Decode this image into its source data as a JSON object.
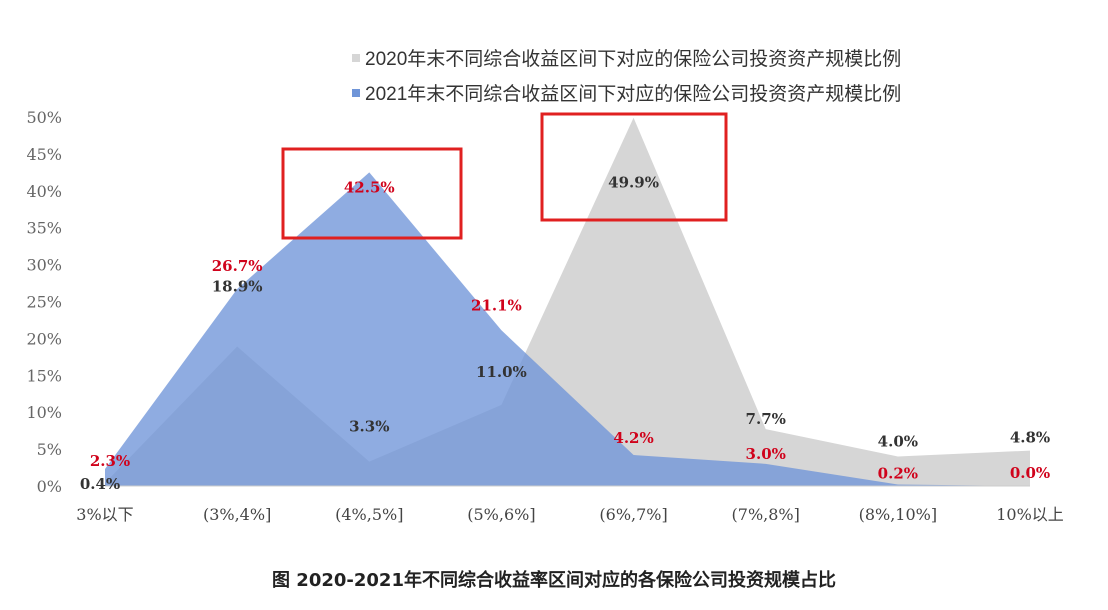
{
  "chart_data": {
    "type": "area",
    "categories": [
      "3%以下",
      "(3%,4%]",
      "(4%,5%]",
      "(5%,6%]",
      "(6%,7%]",
      "(7%,8%]",
      "(8%,10%]",
      "10%以上"
    ],
    "series": [
      {
        "name": "2020年末不同综合收益区间下对应的保险公司投资资产规模比例",
        "values": [
          0.4,
          18.9,
          3.3,
          11.0,
          49.9,
          7.7,
          4.0,
          4.8
        ],
        "labels": [
          "0.4%",
          "18.9%",
          "3.3%",
          "11.0%",
          "49.9%",
          "7.7%",
          "4.0%",
          "4.8%"
        ],
        "color": "#d6d6d6",
        "label_color": "#333333"
      },
      {
        "name": "2021年末不同综合收益区间下对应的保险公司投资资产规模比例",
        "values": [
          2.3,
          26.7,
          42.5,
          21.1,
          4.2,
          3.0,
          0.2,
          0.0
        ],
        "labels": [
          "2.3%",
          "26.7%",
          "42.5%",
          "21.1%",
          "4.2%",
          "3.0%",
          "0.2%",
          "0.0%"
        ],
        "color": "#6f95d8",
        "label_color": "#d0021b"
      }
    ],
    "yticks": [
      "0%",
      "5%",
      "10%",
      "15%",
      "20%",
      "25%",
      "30%",
      "35%",
      "40%",
      "45%",
      "50%"
    ],
    "ylim": [
      0,
      50
    ],
    "grid": false,
    "legend": "top-right",
    "highlight_color": "#e02020",
    "caption": "图 2020-2021年不同综合收益率区间对应的各保险公司投资规模占比"
  }
}
